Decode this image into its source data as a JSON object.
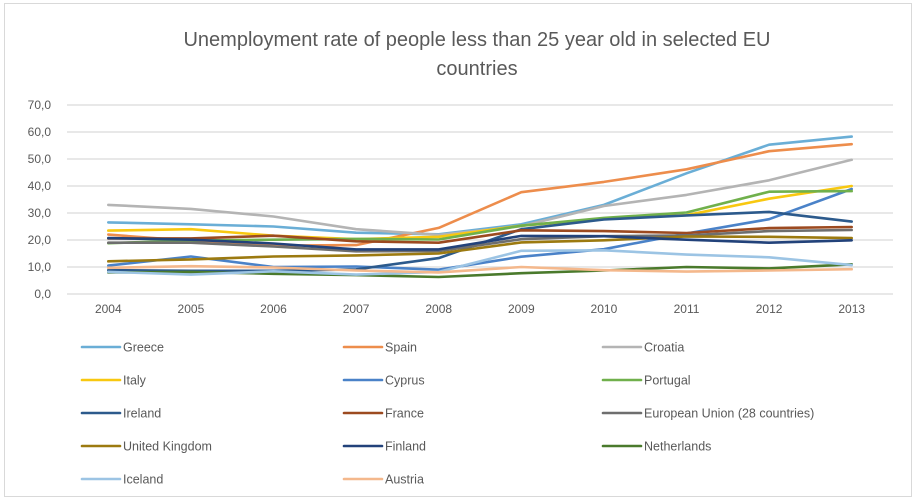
{
  "chart_data": {
    "type": "line",
    "title_lines": [
      "Unemployment rate of people less than 25 year old in selected EU",
      "countries"
    ],
    "xlabel": "",
    "ylabel": "",
    "x": [
      "2004",
      "2005",
      "2006",
      "2007",
      "2008",
      "2009",
      "2010",
      "2011",
      "2012",
      "2013"
    ],
    "ylim": [
      0,
      70
    ],
    "yticks": [
      "0,0",
      "10,0",
      "20,0",
      "30,0",
      "40,0",
      "50,0",
      "60,0",
      "70,0"
    ],
    "grid": "horizontal",
    "legend_position": "bottom",
    "series": [
      {
        "name": "Greece",
        "color": "#6aaed6",
        "values": [
          26.5,
          25.8,
          25.0,
          22.7,
          22.1,
          25.8,
          33.0,
          44.7,
          55.3,
          58.3
        ]
      },
      {
        "name": "Spain",
        "color": "#ed8d4c",
        "values": [
          22.0,
          19.7,
          17.9,
          18.1,
          24.5,
          37.7,
          41.5,
          46.2,
          52.9,
          55.5
        ]
      },
      {
        "name": "Croatia",
        "color": "#b4b4b4",
        "values": [
          33.0,
          31.5,
          28.7,
          24.0,
          21.9,
          25.1,
          32.6,
          36.7,
          42.1,
          49.7
        ]
      },
      {
        "name": "Italy",
        "color": "#f8c810",
        "values": [
          23.5,
          24.0,
          21.6,
          20.3,
          21.2,
          25.3,
          27.9,
          29.2,
          35.3,
          40.0
        ]
      },
      {
        "name": "Cyprus",
        "color": "#4a82c8",
        "values": [
          10.5,
          13.9,
          10.0,
          10.2,
          9.0,
          13.8,
          16.6,
          22.4,
          27.7,
          38.9
        ]
      },
      {
        "name": "Portugal",
        "color": "#70b04c",
        "values": [
          18.8,
          19.8,
          20.1,
          20.4,
          20.2,
          25.3,
          28.2,
          30.2,
          37.9,
          38.1
        ]
      },
      {
        "name": "Ireland",
        "color": "#2c5a8c",
        "values": [
          8.8,
          8.6,
          8.6,
          9.1,
          13.3,
          24.0,
          27.6,
          29.1,
          30.4,
          26.8
        ]
      },
      {
        "name": "France",
        "color": "#9c4a20",
        "values": [
          20.6,
          20.6,
          21.6,
          19.5,
          19.0,
          23.6,
          23.3,
          22.6,
          24.4,
          24.8
        ]
      },
      {
        "name": "European Union (28 countries)",
        "color": "#6e6e6e",
        "values": [
          19.0,
          19.0,
          17.6,
          15.8,
          15.9,
          20.3,
          21.4,
          21.7,
          23.3,
          23.7
        ]
      },
      {
        "name": "United Kingdom",
        "color": "#9c7a10",
        "values": [
          12.1,
          12.8,
          13.9,
          14.3,
          15.0,
          19.1,
          19.9,
          21.3,
          21.2,
          20.7
        ]
      },
      {
        "name": "Finland",
        "color": "#22427a",
        "values": [
          20.7,
          20.1,
          18.7,
          16.5,
          16.5,
          21.5,
          21.4,
          20.1,
          19.0,
          19.9
        ]
      },
      {
        "name": "Netherlands",
        "color": "#4a7a2c",
        "values": [
          8.0,
          8.2,
          7.5,
          7.0,
          6.3,
          7.7,
          8.7,
          10.0,
          9.5,
          11.0
        ]
      },
      {
        "name": "Iceland",
        "color": "#9cc4e4",
        "values": [
          8.2,
          7.2,
          8.4,
          7.2,
          8.2,
          16.0,
          16.2,
          14.6,
          13.6,
          10.7
        ]
      },
      {
        "name": "Austria",
        "color": "#f4b88c",
        "values": [
          9.7,
          10.3,
          9.8,
          8.7,
          8.0,
          10.0,
          8.8,
          8.3,
          8.7,
          9.2
        ]
      }
    ]
  }
}
